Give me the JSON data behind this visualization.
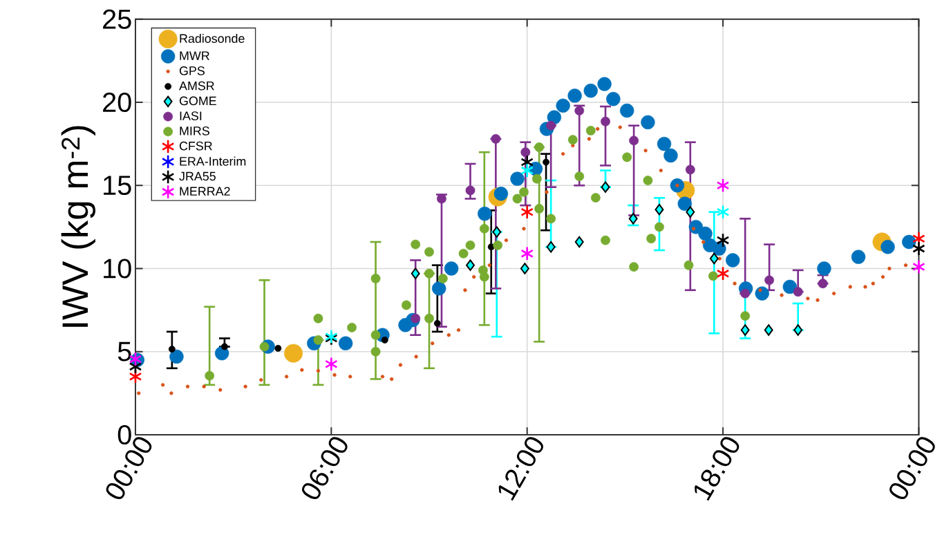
{
  "chart_data": {
    "type": "scatter",
    "ylabel": "IWV (kg m$^{-2}$)",
    "xlim": [
      0,
      24
    ],
    "ylim": [
      0,
      25
    ],
    "xticks": [
      {
        "value": 0,
        "label": "00:00"
      },
      {
        "value": 6,
        "label": "06:00"
      },
      {
        "value": 12,
        "label": "12:00"
      },
      {
        "value": 18,
        "label": "18:00"
      },
      {
        "value": 24,
        "label": "00:00"
      }
    ],
    "yticks": [
      0,
      5,
      10,
      15,
      20,
      25
    ],
    "grid": true,
    "legend": "top left",
    "series": [
      {
        "name": "Radiosonde",
        "color": "#edb120",
        "marker": "circle",
        "x": [
          4.84,
          11.1,
          16.85,
          22.87
        ],
        "values": [
          4.9,
          14.3,
          14.7,
          11.6
        ]
      },
      {
        "name": "MWR",
        "color": "#0072bd",
        "marker": "circle",
        "x": [
          0.06,
          1.26,
          2.65,
          4.06,
          5.47,
          6.44,
          7.57,
          8.27,
          8.5,
          9.3,
          9.68,
          10.16,
          10.7,
          11.2,
          11.57,
          11.7,
          12.26,
          12.6,
          12.83,
          13.1,
          13.46,
          13.95,
          14.37,
          14.64,
          15.06,
          15.7,
          16.2,
          16.4,
          16.6,
          16.83,
          17.17,
          17.46,
          17.6,
          17.88,
          18.3,
          18.7,
          19.2,
          20.05,
          21.1,
          22.15,
          23.05,
          23.7
        ],
        "values": [
          4.5,
          4.7,
          4.9,
          5.3,
          5.5,
          5.5,
          6.0,
          6.6,
          6.9,
          8.8,
          10.0,
          null,
          13.3,
          14.5,
          null,
          15.4,
          16.0,
          18.4,
          19.1,
          19.8,
          20.4,
          20.7,
          21.1,
          20.2,
          19.5,
          18.8,
          17.5,
          16.8,
          15.0,
          13.9,
          12.5,
          12.1,
          11.4,
          11.2,
          10.5,
          8.8,
          8.5,
          8.9,
          10.0,
          10.7,
          11.3,
          11.6
        ]
      },
      {
        "name": "GPS",
        "color": "#d95319",
        "marker": "circle",
        "x": [
          0.1,
          0.84,
          1.1,
          1.6,
          2.1,
          2.6,
          3.37,
          3.85,
          4.63,
          5.1,
          5.6,
          6.1,
          6.58,
          7.57,
          7.85,
          8.12,
          8.6,
          9.1,
          9.6,
          9.9,
          10.1,
          10.37,
          10.85,
          11.36,
          11.9,
          12.6,
          13.1,
          13.4,
          13.9,
          14.16,
          14.85,
          15.63,
          16.1,
          16.6,
          17.1,
          17.4,
          17.9,
          18.36,
          19.14,
          19.8,
          20.6,
          20.9,
          21.4,
          21.9,
          22.36,
          22.6,
          22.9,
          23.1,
          23.6
        ],
        "values": [
          2.5,
          3.0,
          2.5,
          2.9,
          2.9,
          2.7,
          2.9,
          3.3,
          3.5,
          3.9,
          3.85,
          3.6,
          3.5,
          3.5,
          3.35,
          4.2,
          4.7,
          5.5,
          6.0,
          6.3,
          8.7,
          9.5,
          10.2,
          11.7,
          12.4,
          14.6,
          16.9,
          17.4,
          17.8,
          18.4,
          18.5,
          17.1,
          15.9,
          15.0,
          12.4,
          11.6,
          10.6,
          9.1,
          8.7,
          8.4,
          8.2,
          8.1,
          8.5,
          8.9,
          8.9,
          9.1,
          9.5,
          10.0,
          10.2
        ]
      },
      {
        "name": "AMSR",
        "color": "#000000",
        "marker": "circle",
        "x": [
          1.12,
          2.73,
          4.37,
          7.64,
          9.25,
          10.9,
          12.58
        ],
        "values": [
          5.15,
          5.3,
          5.2,
          5.7,
          6.7,
          11.3,
          16.4
        ],
        "errors": [
          [
            4.0,
            6.2
          ],
          [
            5.3,
            5.8
          ],
          null,
          null,
          [
            6.2,
            10.2
          ],
          [
            8.5,
            13.5
          ],
          [
            12.3,
            16.9
          ]
        ]
      },
      {
        "name": "GOME",
        "color": "#00ffff",
        "marker": "diamond",
        "x": [
          8.58,
          10.26,
          11.07,
          11.93,
          12.73,
          13.6,
          14.4,
          15.25,
          16.05,
          17.0,
          17.73,
          18.68,
          19.4,
          20.3
        ],
        "values": [
          9.7,
          10.2,
          12.2,
          10.0,
          11.3,
          11.6,
          14.9,
          13.0,
          13.55,
          13.4,
          10.6,
          6.3,
          6.3,
          6.3
        ],
        "errors": [
          null,
          null,
          [
            5.9,
            12.2
          ],
          null,
          [
            11.3,
            15.3
          ],
          null,
          [
            14.9,
            15.9
          ],
          [
            12.6,
            13.8
          ],
          [
            11.1,
            14.25
          ],
          null,
          [
            6.1,
            13.4
          ],
          [
            5.8,
            8.8
          ],
          null,
          [
            6.3,
            7.9
          ]
        ]
      },
      {
        "name": "IASI",
        "color": "#7e2f8e",
        "marker": "circle",
        "x": [
          8.58,
          9.38,
          10.26,
          11.04,
          11.95,
          12.73,
          13.6,
          14.4,
          15.27,
          17.0,
          18.68,
          19.42,
          20.3,
          21.06
        ],
        "values": [
          7.0,
          14.2,
          14.7,
          17.8,
          17.0,
          18.6,
          19.5,
          18.85,
          17.7,
          15.95,
          8.5,
          9.3,
          8.6,
          9.1
        ],
        "errors": [
          [
            6.0,
            10.5
          ],
          [
            6.5,
            14.45
          ],
          [
            14.2,
            16.3
          ],
          [
            8.8,
            17.8
          ],
          [
            13.8,
            17.6
          ],
          [
            14.9,
            18.6
          ],
          [
            15.0,
            19.8
          ],
          [
            16.2,
            19.75
          ],
          [
            13.2,
            18.6
          ],
          [
            8.7,
            17.6
          ],
          [
            8.5,
            13.0
          ],
          [
            8.7,
            11.45
          ],
          [
            8.6,
            9.9
          ],
          [
            9.1,
            9.6
          ]
        ]
      },
      {
        "name": "MIRS",
        "color": "#77ac30",
        "marker": "circle",
        "x": [
          2.27,
          3.95,
          5.6,
          5.6,
          6.63,
          7.36,
          7.36,
          7.36,
          8.3,
          8.58,
          9.0,
          9.0,
          9.0,
          9.42,
          10.05,
          10.26,
          10.65,
          10.69,
          10.69,
          11.1,
          11.7,
          11.9,
          12.3,
          12.37,
          12.37,
          12.73,
          13.4,
          13.6,
          13.95,
          14.1,
          14.4,
          15.06,
          15.27,
          15.7,
          15.8,
          16.05,
          16.95,
          17.7,
          18.68
        ],
        "values": [
          3.55,
          5.3,
          5.7,
          7.0,
          6.45,
          6.0,
          9.4,
          5.0,
          7.8,
          11.45,
          11.0,
          9.7,
          7.0,
          9.4,
          10.9,
          11.4,
          9.9,
          12.4,
          9.5,
          11.4,
          14.2,
          14.6,
          15.4,
          17.3,
          13.6,
          13.0,
          17.75,
          15.55,
          18.3,
          14.26,
          11.7,
          16.7,
          10.1,
          15.3,
          11.8,
          12.5,
          10.2,
          9.55,
          7.15
        ],
        "errors": [
          [
            3.0,
            7.7
          ],
          [
            3.0,
            9.3
          ],
          [
            3.0,
            5.7
          ],
          null,
          null,
          [
            3.35,
            11.6
          ],
          null,
          null,
          null,
          null,
          null,
          [
            4.0,
            9.7
          ],
          null,
          null,
          null,
          null,
          null,
          [
            6.6,
            17.0
          ],
          null,
          null,
          null,
          null,
          null,
          [
            5.6,
            17.3
          ],
          null,
          null,
          null,
          null,
          null,
          null,
          null,
          null,
          null,
          null,
          null,
          null,
          null,
          null,
          null
        ]
      },
      {
        "name": "CFSR",
        "color": "#ff0000",
        "marker": "cross",
        "x": [
          0,
          12,
          18,
          24
        ],
        "values": [
          3.5,
          13.4,
          9.7,
          11.8
        ]
      },
      {
        "name": "ERA-Interim",
        "color": "#0000ff",
        "marker": "cross"
      },
      {
        "name": "JRA55",
        "color": "#000000",
        "marker": "cross",
        "x": [
          0,
          6,
          12,
          18,
          24
        ],
        "values": [
          4.1,
          5.8,
          16.4,
          11.7,
          11.2
        ]
      },
      {
        "name": "MERRA2",
        "color": "#ff00ff",
        "marker": "cross",
        "x": [
          0,
          6,
          12,
          18,
          24
        ],
        "values": [
          4.55,
          4.25,
          10.9,
          15.0,
          10.1
        ]
      },
      {
        "color": "#00ffff",
        "marker": "cross",
        "x": [
          6,
          12,
          18
        ],
        "values": [
          5.9,
          15.9,
          13.4
        ]
      }
    ]
  }
}
